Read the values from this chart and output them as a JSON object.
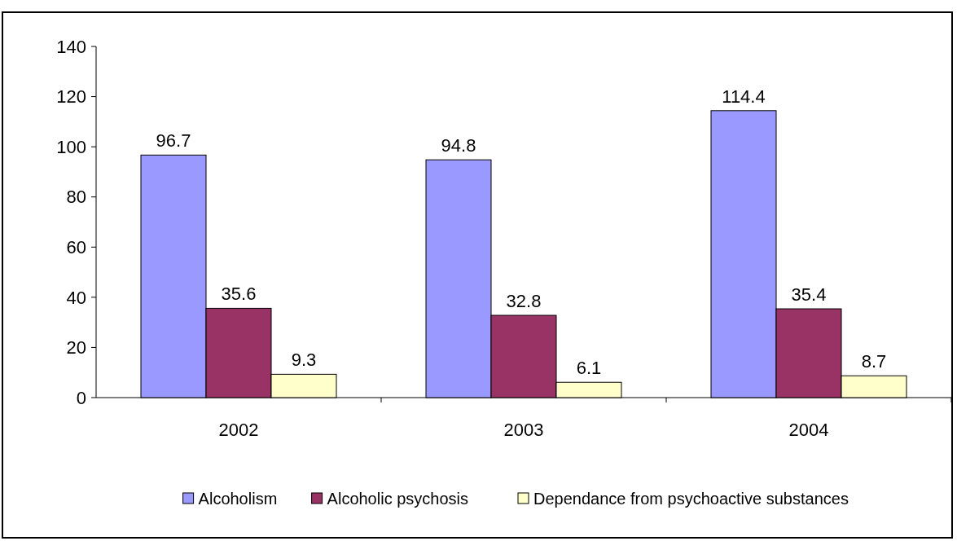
{
  "chart_data": {
    "type": "bar",
    "categories": [
      "2002",
      "2003",
      "2004"
    ],
    "series": [
      {
        "name": "Alcoholism",
        "color": "#9999ff",
        "values": [
          96.7,
          94.8,
          114.4
        ]
      },
      {
        "name": "Alcoholic psychosis",
        "color": "#993366",
        "values": [
          35.6,
          32.8,
          35.4
        ]
      },
      {
        "name": "Dependance from psychoactive substances",
        "color": "#ffffcc",
        "values": [
          9.3,
          6.1,
          8.7
        ]
      }
    ],
    "ylim": [
      0,
      140
    ],
    "yticks": [
      0,
      20,
      40,
      60,
      80,
      100,
      120,
      140
    ],
    "data_labels": true,
    "legend": "bottom",
    "grid": false
  }
}
